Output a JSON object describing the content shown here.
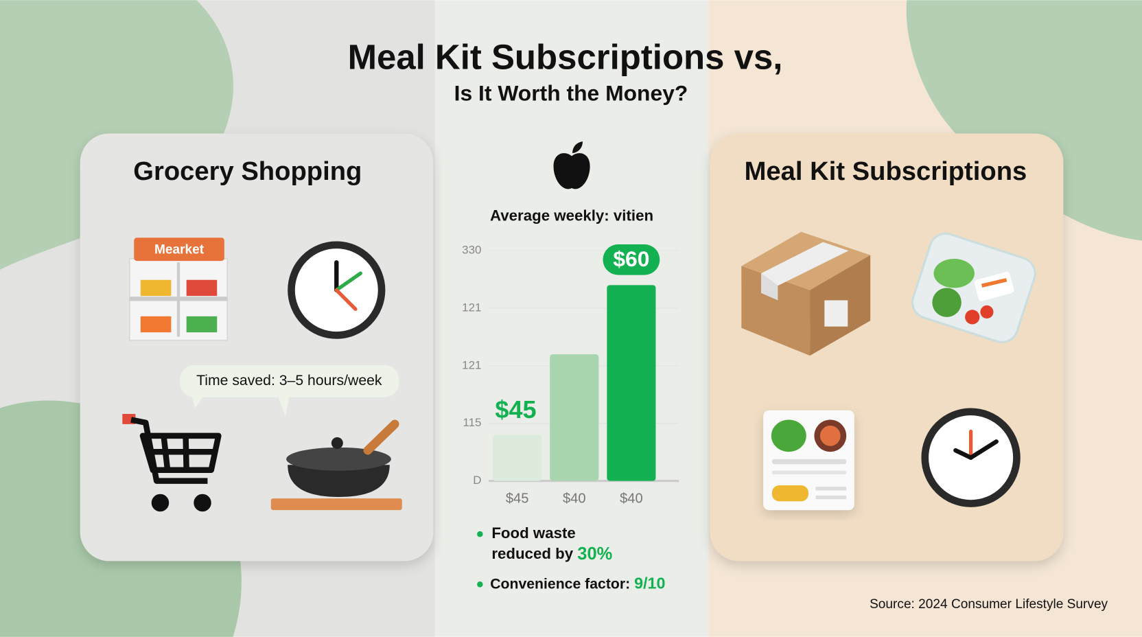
{
  "header": {
    "title": "Meal Kit Subscriptions vs,",
    "subtitle": "Is It Worth the Money?"
  },
  "left_panel": {
    "title": "Grocery Shopping",
    "sign": "Mearket",
    "bubble": "Time saved: 3–5 hours/week"
  },
  "right_panel": {
    "title": "Meal Kit Subscriptions"
  },
  "center": {
    "bullets": [
      {
        "lines": [
          "Food waste",
          "reduced by "
        ],
        "highlight": "30%"
      },
      {
        "lines": [
          "Convenience factor: "
        ],
        "highlight": "9/10"
      }
    ]
  },
  "chart_data": {
    "type": "bar",
    "title": "Average weekly: vitien",
    "categories": [
      "$45",
      "$40",
      "$40"
    ],
    "values": [
      0.8,
      2.2,
      3.4
    ],
    "colors": [
      "#dcebdc",
      "#a8d5ae",
      "#13b152"
    ],
    "annotations": [
      "$45",
      "$60"
    ],
    "ylim": [
      0,
      4.2
    ],
    "yticks": [
      {
        "value": 0,
        "label": "D"
      },
      {
        "value": 1,
        "label": "115"
      },
      {
        "value": 2,
        "label": "121"
      },
      {
        "value": 3,
        "label": "121"
      },
      {
        "value": 4,
        "label": "330"
      }
    ],
    "grid": true
  },
  "source": "Source: 2024 Consumer Lifestyle Survey"
}
